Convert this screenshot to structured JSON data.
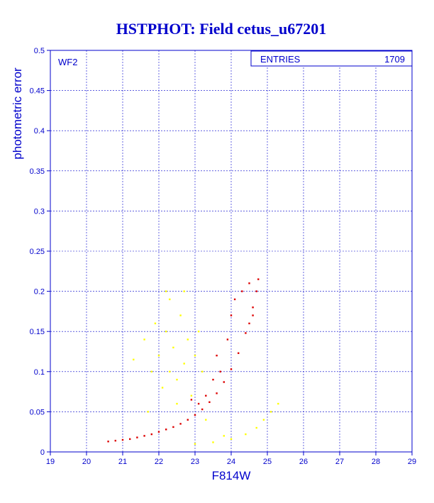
{
  "chart_data": {
    "type": "scatter",
    "title": "HSTPHOT: Field cetus_u67201",
    "xlabel": "F814W",
    "ylabel": "photometric error",
    "xlim": [
      19,
      29
    ],
    "ylim": [
      0,
      0.5
    ],
    "x_ticks": [
      "19",
      "20",
      "21",
      "22",
      "23",
      "24",
      "25",
      "26",
      "27",
      "28",
      "29"
    ],
    "y_ticks": [
      "0",
      "0.05",
      "0.1",
      "0.15",
      "0.2",
      "0.25",
      "0.3",
      "0.35",
      "0.4",
      "0.45",
      "0.5"
    ],
    "panel_label": "WF2",
    "stats_box": {
      "label": "ENTRIES",
      "value": "1709"
    },
    "grid": true,
    "colors": {
      "title": "#0000cc",
      "axis": "#0000cc",
      "selected": "#dd0000",
      "rejected": "#ffff00",
      "background": "#ffffff"
    },
    "series": [
      {
        "color": "#dd0000",
        "points": [
          [
            20.6,
            0.013
          ],
          [
            20.8,
            0.014
          ],
          [
            21.0,
            0.015
          ],
          [
            21.2,
            0.016
          ],
          [
            21.4,
            0.018
          ],
          [
            21.6,
            0.02
          ],
          [
            21.8,
            0.022
          ],
          [
            22.0,
            0.025
          ],
          [
            22.2,
            0.028
          ],
          [
            22.4,
            0.031
          ],
          [
            22.6,
            0.035
          ],
          [
            22.8,
            0.04
          ],
          [
            23.0,
            0.046
          ],
          [
            23.2,
            0.053
          ],
          [
            23.4,
            0.062
          ],
          [
            23.6,
            0.073
          ],
          [
            23.8,
            0.087
          ],
          [
            24.0,
            0.103
          ],
          [
            24.2,
            0.123
          ],
          [
            24.4,
            0.148
          ],
          [
            24.6,
            0.18
          ],
          [
            24.75,
            0.215
          ],
          [
            23.3,
            0.07
          ],
          [
            23.5,
            0.09
          ],
          [
            23.6,
            0.12
          ],
          [
            23.9,
            0.14
          ],
          [
            24.0,
            0.17
          ],
          [
            24.1,
            0.19
          ],
          [
            24.3,
            0.2
          ],
          [
            24.5,
            0.21
          ],
          [
            23.7,
            0.1
          ],
          [
            23.1,
            0.06
          ],
          [
            22.9,
            0.065
          ],
          [
            24.6,
            0.17
          ],
          [
            24.7,
            0.2
          ],
          [
            24.5,
            0.16
          ]
        ]
      },
      {
        "color": "#ffff00",
        "points": [
          [
            21.3,
            0.115
          ],
          [
            21.6,
            0.14
          ],
          [
            21.8,
            0.1
          ],
          [
            22.0,
            0.12
          ],
          [
            22.1,
            0.08
          ],
          [
            22.2,
            0.15
          ],
          [
            22.3,
            0.1
          ],
          [
            22.4,
            0.13
          ],
          [
            22.5,
            0.09
          ],
          [
            22.6,
            0.17
          ],
          [
            22.7,
            0.11
          ],
          [
            22.8,
            0.14
          ],
          [
            22.9,
            0.07
          ],
          [
            23.0,
            0.12
          ],
          [
            22.3,
            0.19
          ],
          [
            22.7,
            0.2
          ],
          [
            22.5,
            0.06
          ],
          [
            21.9,
            0.16
          ],
          [
            23.2,
            0.1
          ],
          [
            23.1,
            0.15
          ],
          [
            22.2,
            0.2
          ],
          [
            21.7,
            0.05
          ],
          [
            23.3,
            0.04
          ],
          [
            23.0,
            0.01
          ],
          [
            23.5,
            0.012
          ],
          [
            24.0,
            0.016
          ],
          [
            24.4,
            0.022
          ],
          [
            24.7,
            0.03
          ],
          [
            24.9,
            0.04
          ],
          [
            25.1,
            0.05
          ],
          [
            25.3,
            0.06
          ],
          [
            23.8,
            0.02
          ]
        ]
      }
    ]
  }
}
